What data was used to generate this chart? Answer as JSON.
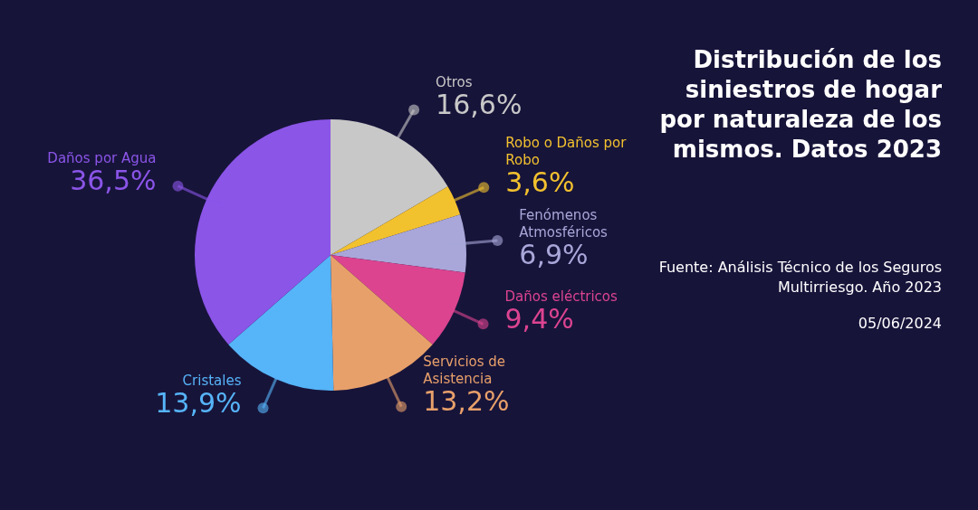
{
  "chart_data": {
    "type": "pie",
    "title": "Distribución de los siniestros de hogar por naturaleza de los mismos. Datos 2023",
    "categories": [
      "Otros",
      "Robo o Daños por Robo",
      "Fenómenos Atmosféricos",
      "Daños eléctricos",
      "Servicios de Asistencia",
      "Cristales",
      "Daños por Agua"
    ],
    "values": [
      16.6,
      3.6,
      6.9,
      9.4,
      13.2,
      13.9,
      36.5
    ],
    "value_labels": [
      "16,6%",
      "3,6%",
      "6,9%",
      "9,4%",
      "13,2%",
      "13,9%",
      "36,5%"
    ],
    "colors": [
      "#c8c8c8",
      "#f2c12e",
      "#a9a7d9",
      "#dc4490",
      "#e8a06a",
      "#56b4f8",
      "#8b55e8"
    ],
    "annotations": [
      "Fuente: Análisis Técnico de los Seguros Multirriesgo. Año 2023",
      "05/06/2024"
    ],
    "legend": false
  }
}
